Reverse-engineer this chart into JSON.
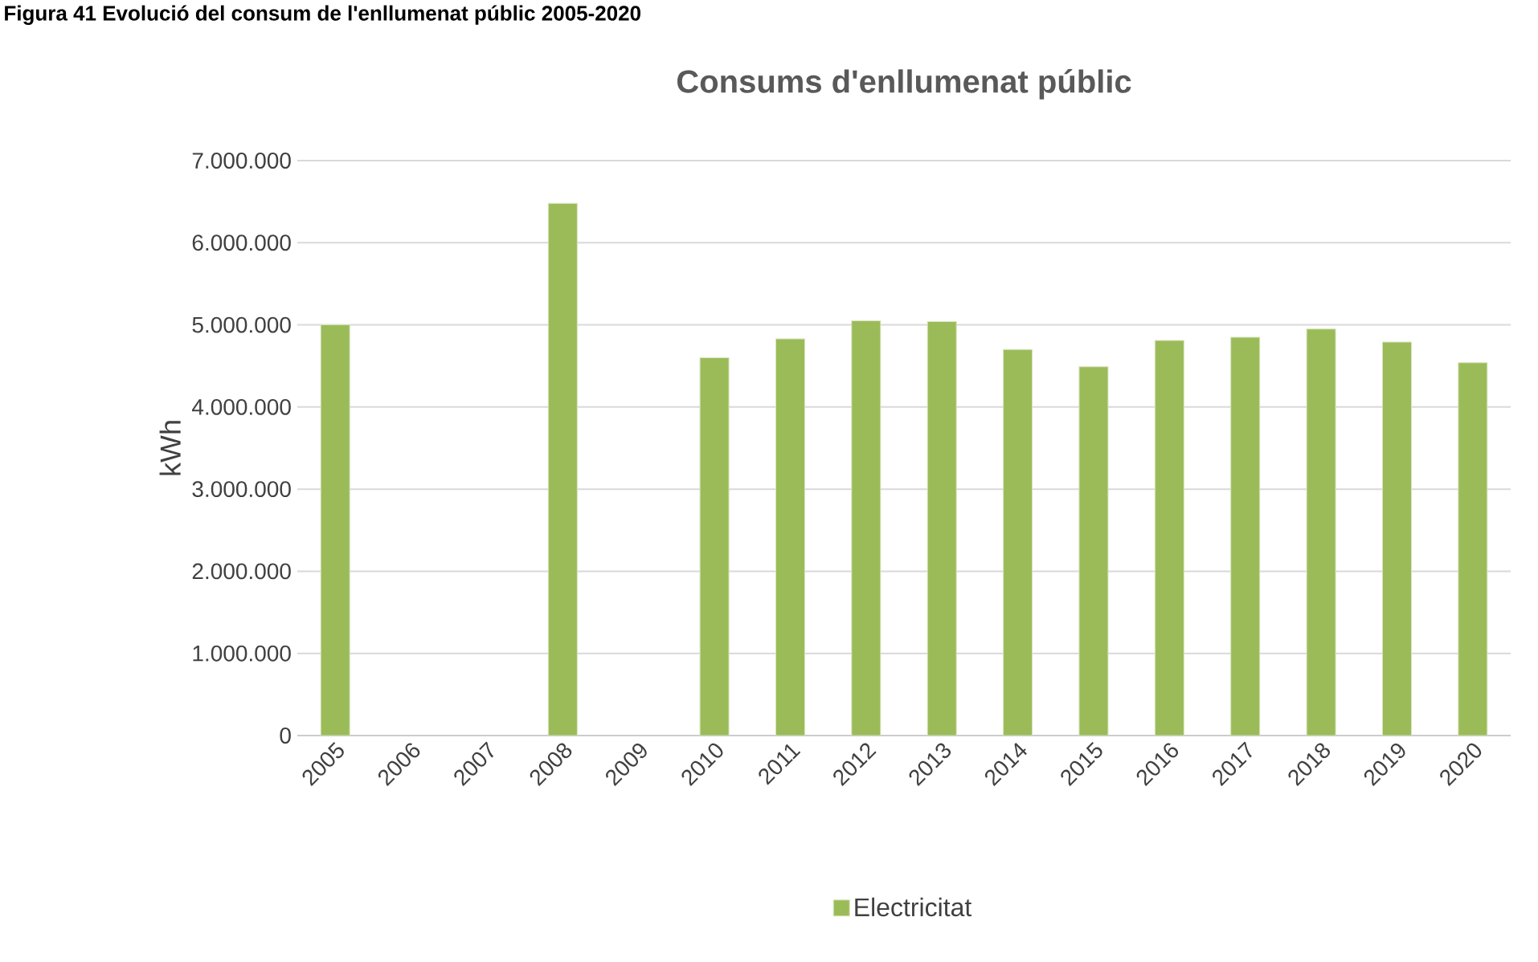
{
  "chart_data": {
    "type": "bar",
    "title": "Consums d'enllumenat públic",
    "ylabel": "kWh",
    "annotations": [
      "Figura 41 Evolució del consum de l'enllumenat públic 2005-2020"
    ],
    "categories": [
      "2005",
      "2006",
      "2007",
      "2008",
      "2009",
      "2010",
      "2011",
      "2012",
      "2013",
      "2014",
      "2015",
      "2016",
      "2017",
      "2018",
      "2019",
      "2020"
    ],
    "series": [
      {
        "name": "Electricitat",
        "color": "#9bbb59",
        "values": [
          5000000,
          null,
          null,
          6480000,
          null,
          4600000,
          4830000,
          5050000,
          5040000,
          4700000,
          4490000,
          4810000,
          4850000,
          4950000,
          4790000,
          4540000
        ]
      }
    ],
    "ylim": [
      0,
      7000000
    ],
    "yticks": [
      0,
      {
        "value": 1000000,
        "label": "1.000.000"
      },
      {
        "value": 2000000,
        "label": "2.000.000"
      },
      {
        "value": 3000000,
        "label": "3.000.000"
      },
      {
        "value": 4000000,
        "label": "4.000.000"
      },
      {
        "value": 5000000,
        "label": "5.000.000"
      },
      {
        "value": 6000000,
        "label": "6.000.000"
      },
      {
        "value": 7000000,
        "label": "7.000.000"
      }
    ],
    "grid": "y",
    "legend": "bottom"
  }
}
